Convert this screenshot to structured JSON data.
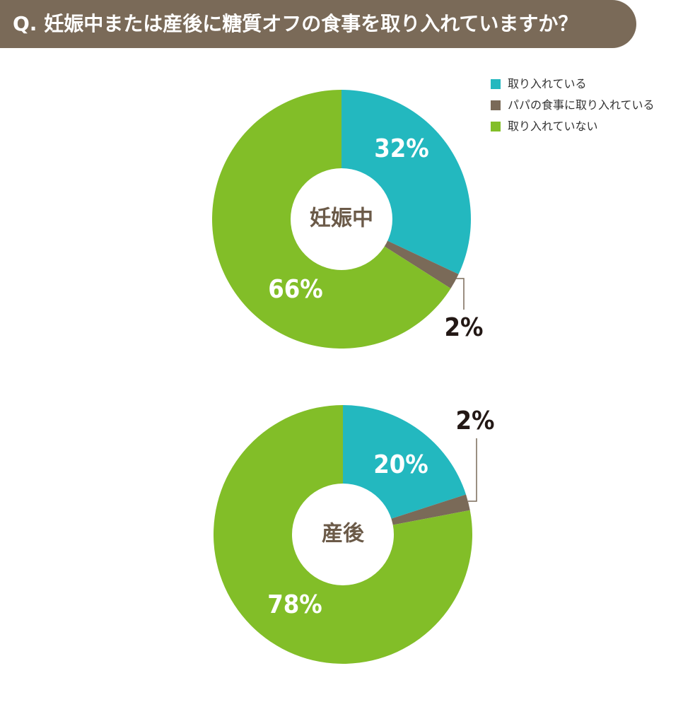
{
  "header": {
    "question": "Q. 妊娠中または産後に糖質オフの食事を取り入れていますか？"
  },
  "legend": [
    {
      "label": "取り入れている",
      "color": "#23b8bf"
    },
    {
      "label": "パパの食事に取り入れている",
      "color": "#7a6a58"
    },
    {
      "label": "取り入れていない",
      "color": "#82be28"
    }
  ],
  "chart_data": [
    {
      "type": "pie",
      "center_label": "妊娠中",
      "categories": [
        "取り入れている",
        "パパの食事に取り入れている",
        "取り入れていない"
      ],
      "values": [
        32,
        2,
        66
      ],
      "labels": [
        "32%",
        "2%",
        "66%"
      ],
      "colors": [
        "#23b8bf",
        "#7a6a58",
        "#82be28"
      ]
    },
    {
      "type": "pie",
      "center_label": "産後",
      "categories": [
        "取り入れている",
        "パパの食事に取り入れている",
        "取り入れていない"
      ],
      "values": [
        20,
        2,
        78
      ],
      "labels": [
        "20%",
        "2%",
        "78%"
      ],
      "colors": [
        "#23b8bf",
        "#7a6a58",
        "#82be28"
      ]
    }
  ]
}
